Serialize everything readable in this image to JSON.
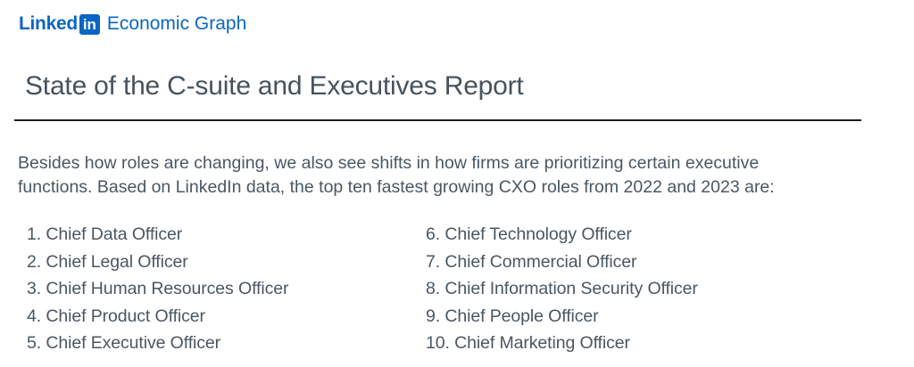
{
  "header": {
    "brand_word": "Linked",
    "brand_mark": "in",
    "product": "Economic Graph"
  },
  "report": {
    "title": "State of the C-suite and Executives Report",
    "intro": "Besides how roles are changing, we also see shifts in how firms are prioritizing certain executive functions. Based on LinkedIn data, the top ten fastest growing CXO roles from 2022 and 2023 are:"
  },
  "roles_left": [
    "1. Chief Data Officer",
    "2. Chief Legal Officer",
    "3. Chief Human Resources Officer",
    "4. Chief Product Officer",
    "5. Chief Executive Officer"
  ],
  "roles_right": [
    "6. Chief Technology Officer",
    "7. Chief Commercial Officer",
    "8.  Chief Information Security Officer",
    "9. Chief People Officer",
    "10. Chief Marketing Officer"
  ],
  "colors": {
    "brand": "#0a66c2",
    "text": "#4a5763",
    "rule": "#1d1d1d"
  }
}
